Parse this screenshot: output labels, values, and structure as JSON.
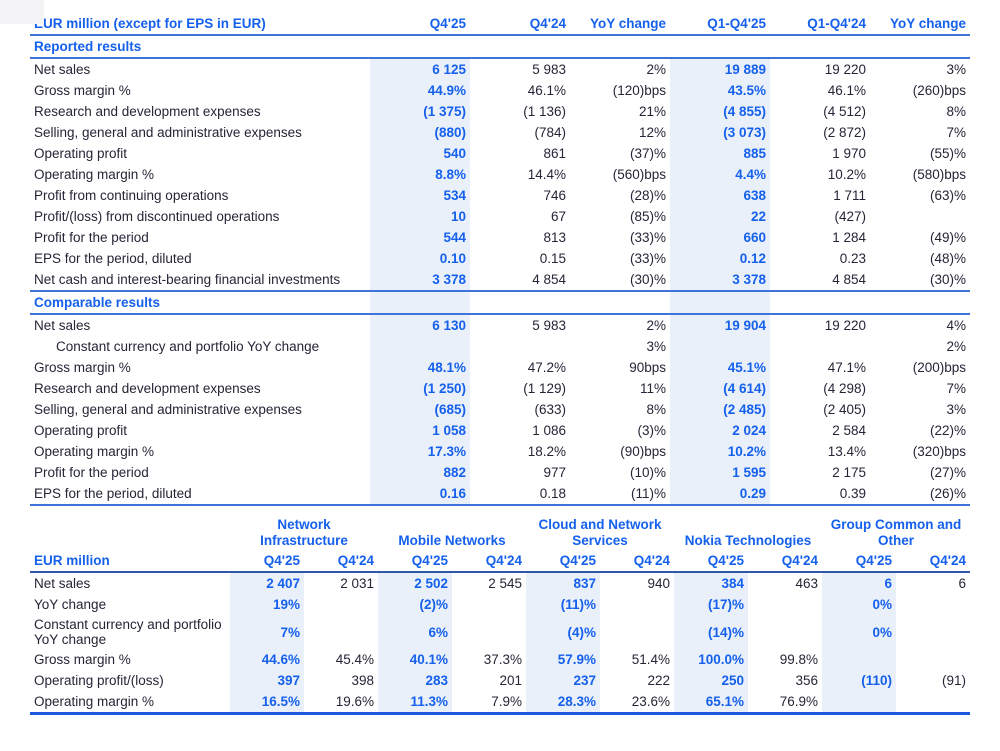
{
  "colors": {
    "accent_blue": "#1560EC",
    "dark_text": "#252536",
    "highlight_band": "#E9F0FA",
    "rule_blue": "#3E74D8",
    "rule_strong": "#1E57E0"
  },
  "consolidated": {
    "title": "EUR million (except for EPS in EUR)",
    "columns": [
      "Q4'25",
      "Q4'24",
      "YoY change",
      "Q1-Q4'25",
      "Q1-Q4'24",
      "YoY change"
    ],
    "highlight_column_indexes": [
      0,
      3
    ],
    "sections": [
      {
        "label": "Reported results",
        "banded_header": false,
        "rows": [
          {
            "label": "Net sales",
            "indent": false,
            "values": [
              "6 125",
              "5 983",
              "2%",
              "19 889",
              "19 220",
              "3%"
            ]
          },
          {
            "label": "Gross margin %",
            "indent": false,
            "values": [
              "44.9%",
              "46.1%",
              "(120)bps",
              "43.5%",
              "46.1%",
              "(260)bps"
            ]
          },
          {
            "label": "Research and development expenses",
            "indent": false,
            "values": [
              "(1 375)",
              "(1 136)",
              "21%",
              "(4 855)",
              "(4 512)",
              "8%"
            ]
          },
          {
            "label": "Selling, general and administrative expenses",
            "indent": false,
            "values": [
              "(880)",
              "(784)",
              "12%",
              "(3 073)",
              "(2 872)",
              "7%"
            ]
          },
          {
            "label": "Operating profit",
            "indent": false,
            "values": [
              "540",
              "861",
              "(37)%",
              "885",
              "1 970",
              "(55)%"
            ]
          },
          {
            "label": "Operating margin %",
            "indent": false,
            "values": [
              "8.8%",
              "14.4%",
              "(560)bps",
              "4.4%",
              "10.2%",
              "(580)bps"
            ]
          },
          {
            "label": "Profit from continuing operations",
            "indent": false,
            "values": [
              "534",
              "746",
              "(28)%",
              "638",
              "1 711",
              "(63)%"
            ]
          },
          {
            "label": "Profit/(loss) from discontinued operations",
            "indent": false,
            "values": [
              "10",
              "67",
              "(85)%",
              "22",
              "(427)",
              ""
            ]
          },
          {
            "label": "Profit for the period",
            "indent": false,
            "values": [
              "544",
              "813",
              "(33)%",
              "660",
              "1 284",
              "(49)%"
            ]
          },
          {
            "label": "EPS for the period, diluted",
            "indent": false,
            "values": [
              "0.10",
              "0.15",
              "(33)%",
              "0.12",
              "0.23",
              "(48)%"
            ]
          },
          {
            "label": "Net cash and interest-bearing financial investments",
            "indent": false,
            "values": [
              "3 378",
              "4 854",
              "(30)%",
              "3 378",
              "4 854",
              "(30)%"
            ]
          }
        ]
      },
      {
        "label": "Comparable results",
        "banded_header": true,
        "rows": [
          {
            "label": "Net sales",
            "indent": false,
            "values": [
              "6 130",
              "5 983",
              "2%",
              "19 904",
              "19 220",
              "4%"
            ]
          },
          {
            "label": "Constant currency and portfolio YoY change",
            "indent": true,
            "values": [
              "",
              "",
              "3%",
              "",
              "",
              "2%"
            ]
          },
          {
            "label": "Gross margin %",
            "indent": false,
            "values": [
              "48.1%",
              "47.2%",
              "90bps",
              "45.1%",
              "47.1%",
              "(200)bps"
            ]
          },
          {
            "label": "Research and development expenses",
            "indent": false,
            "values": [
              "(1 250)",
              "(1 129)",
              "11%",
              "(4 614)",
              "(4 298)",
              "7%"
            ]
          },
          {
            "label": "Selling, general and administrative expenses",
            "indent": false,
            "values": [
              "(685)",
              "(633)",
              "8%",
              "(2 485)",
              "(2 405)",
              "3%"
            ]
          },
          {
            "label": "Operating profit",
            "indent": false,
            "values": [
              "1 058",
              "1 086",
              "(3)%",
              "2 024",
              "2 584",
              "(22)%"
            ]
          },
          {
            "label": "Operating margin %",
            "indent": false,
            "values": [
              "17.3%",
              "18.2%",
              "(90)bps",
              "10.2%",
              "13.4%",
              "(320)bps"
            ]
          },
          {
            "label": "Profit for the period",
            "indent": false,
            "values": [
              "882",
              "977",
              "(10)%",
              "1 595",
              "2 175",
              "(27)%"
            ]
          },
          {
            "label": "EPS for the period, diluted",
            "indent": false,
            "values": [
              "0.16",
              "0.18",
              "(11)%",
              "0.29",
              "0.39",
              "(26)%"
            ]
          }
        ]
      }
    ]
  },
  "segments": {
    "title": "EUR million",
    "groups": [
      "Network Infrastructure",
      "Mobile Networks",
      "Cloud and Network Services",
      "Nokia Technologies",
      "Group Common and Other"
    ],
    "subcolumns": [
      "Q4'25",
      "Q4'24"
    ],
    "highlight_subcolumn": "Q4'25",
    "rows": [
      {
        "label": "Net sales",
        "values": [
          "2 407",
          "2 031",
          "2 502",
          "2 545",
          "837",
          "940",
          "384",
          "463",
          "6",
          "6"
        ]
      },
      {
        "label": "YoY change",
        "values": [
          "19%",
          "",
          "(2)%",
          "",
          "(11)%",
          "",
          "(17)%",
          "",
          "0%",
          ""
        ]
      },
      {
        "label": "Constant currency and portfolio YoY change",
        "values": [
          "7%",
          "",
          "6%",
          "",
          "(4)%",
          "",
          "(14)%",
          "",
          "0%",
          ""
        ]
      },
      {
        "label": "Gross margin %",
        "values": [
          "44.6%",
          "45.4%",
          "40.1%",
          "37.3%",
          "57.9%",
          "51.4%",
          "100.0%",
          "99.8%",
          "",
          ""
        ]
      },
      {
        "label": "Operating profit/(loss)",
        "values": [
          "397",
          "398",
          "283",
          "201",
          "237",
          "222",
          "250",
          "356",
          "(110)",
          "(91)"
        ]
      },
      {
        "label": "Operating margin %",
        "values": [
          "16.5%",
          "19.6%",
          "11.3%",
          "7.9%",
          "28.3%",
          "23.6%",
          "65.1%",
          "76.9%",
          "",
          ""
        ]
      }
    ]
  }
}
